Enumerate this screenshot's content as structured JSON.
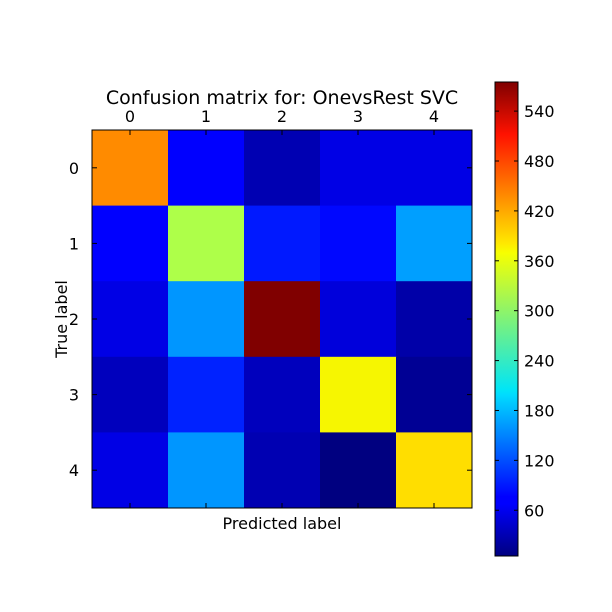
{
  "chart_data": {
    "type": "heatmap",
    "title": "Confusion matrix for: OnevsRest SVC",
    "xlabel": "Predicted label",
    "ylabel": "True label",
    "x_categories": [
      "0",
      "1",
      "2",
      "3",
      "4"
    ],
    "y_categories": [
      "0",
      "1",
      "2",
      "3",
      "4"
    ],
    "values": [
      [
        440,
        70,
        30,
        55,
        55
      ],
      [
        70,
        325,
        90,
        80,
        165
      ],
      [
        55,
        160,
        575,
        50,
        25
      ],
      [
        35,
        95,
        35,
        375,
        15
      ],
      [
        55,
        160,
        30,
        5,
        390
      ]
    ],
    "colormap": "jet",
    "colorbar": {
      "min": 5,
      "max": 575,
      "ticks": [
        60,
        120,
        180,
        240,
        300,
        360,
        420,
        480,
        540
      ]
    },
    "x_tick_position": "top",
    "grid": false
  }
}
